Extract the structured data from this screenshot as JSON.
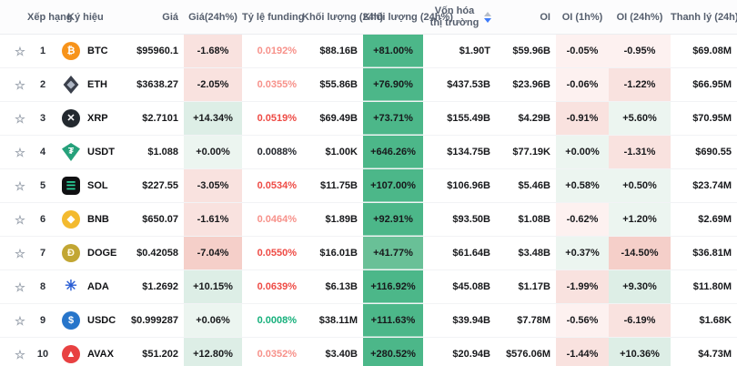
{
  "header": {
    "columns": [
      "Xếp hạng",
      "Ký hiệu",
      "Giá",
      "Giá(24h%)",
      "Tỷ lệ funding",
      "Khối lượng (24h)",
      "Khối lượng (24h%)",
      "Vốn hóa thị trường",
      "OI",
      "OI (1h%)",
      "OI (24h%)",
      "Thanh lý (24h)"
    ],
    "sort_column": "Vốn hóa thị trường",
    "sort_direction": "desc"
  },
  "colors": {
    "strong_green": "#4cb789",
    "light_green_tint": "#ddeee6",
    "pink_tint": "#f9e2df",
    "funding_red": "#ee4b45",
    "funding_green": "#17b07c",
    "sort_active_blue": "#3e7bfa"
  },
  "rows": [
    {
      "rank": "1",
      "symbol": "BTC",
      "icon": {
        "name": "btc-icon",
        "shape": "circle",
        "bg": "#f7931a",
        "fg": "#ffffff",
        "glyph": "₿"
      },
      "price": "$95960.1",
      "change24h": "-1.68%",
      "change24h_tint": "pink2",
      "funding": "0.0192%",
      "funding_color": "light-red",
      "vol24h": "$88.16B",
      "vol24h_pct": "+81.00%",
      "vol_tint": "gstrong",
      "mcap": "$1.90T",
      "oi": "$59.96B",
      "oi1h": "-0.05%",
      "oi1h_tint": "pink1",
      "oi24h": "-0.95%",
      "oi24h_tint": "pink1",
      "liq": "$69.08M"
    },
    {
      "rank": "2",
      "symbol": "ETH",
      "icon": {
        "name": "eth-icon",
        "shape": "diamond",
        "bg": "#3a3f4b",
        "fg": "#aeb6c4",
        "glyph": "◆"
      },
      "price": "$3638.27",
      "change24h": "-2.05%",
      "change24h_tint": "pink2",
      "funding": "0.0355%",
      "funding_color": "light-red",
      "vol24h": "$55.86B",
      "vol24h_pct": "+76.90%",
      "vol_tint": "gstrong",
      "mcap": "$437.53B",
      "oi": "$23.96B",
      "oi1h": "-0.06%",
      "oi1h_tint": "pink1",
      "oi24h": "-1.22%",
      "oi24h_tint": "pink2",
      "liq": "$66.95M"
    },
    {
      "rank": "3",
      "symbol": "XRP",
      "icon": {
        "name": "xrp-icon",
        "shape": "circle",
        "bg": "#23292f",
        "fg": "#ffffff",
        "glyph": "✕"
      },
      "price": "$2.7101",
      "change24h": "+14.34%",
      "change24h_tint": "green2",
      "funding": "0.0519%",
      "funding_color": "red",
      "vol24h": "$69.49B",
      "vol24h_pct": "+73.71%",
      "vol_tint": "gstrong",
      "mcap": "$155.49B",
      "oi": "$4.29B",
      "oi1h": "-0.91%",
      "oi1h_tint": "pink2",
      "oi24h": "+5.60%",
      "oi24h_tint": "green1",
      "liq": "$70.95M"
    },
    {
      "rank": "4",
      "symbol": "USDT",
      "icon": {
        "name": "usdt-icon",
        "shape": "shield",
        "bg": "#26a17b",
        "fg": "#ffffff",
        "glyph": "₮"
      },
      "price": "$1.088",
      "change24h": "+0.00%",
      "change24h_tint": "green1",
      "funding": "0.0088%",
      "funding_color": "dark",
      "vol24h": "$1.00K",
      "vol24h_pct": "+646.26%",
      "vol_tint": "gstrong",
      "mcap": "$134.75B",
      "oi": "$77.19K",
      "oi1h": "+0.00%",
      "oi1h_tint": "green1",
      "oi24h": "-1.31%",
      "oi24h_tint": "pink2",
      "liq": "$690.55"
    },
    {
      "rank": "5",
      "symbol": "SOL",
      "icon": {
        "name": "sol-icon",
        "shape": "square",
        "bg": "#101012",
        "fg": "#2bd9a0",
        "glyph": "☰"
      },
      "price": "$227.55",
      "change24h": "-3.05%",
      "change24h_tint": "pink2",
      "funding": "0.0534%",
      "funding_color": "red",
      "vol24h": "$11.75B",
      "vol24h_pct": "+107.00%",
      "vol_tint": "gstrong",
      "mcap": "$106.96B",
      "oi": "$5.46B",
      "oi1h": "+0.58%",
      "oi1h_tint": "green1",
      "oi24h": "+0.50%",
      "oi24h_tint": "green1",
      "liq": "$23.74M"
    },
    {
      "rank": "6",
      "symbol": "BNB",
      "icon": {
        "name": "bnb-icon",
        "shape": "circle",
        "bg": "#f3ba2f",
        "fg": "#ffffff",
        "glyph": "◆"
      },
      "price": "$650.07",
      "change24h": "-1.61%",
      "change24h_tint": "pink2",
      "funding": "0.0464%",
      "funding_color": "light-red",
      "vol24h": "$1.89B",
      "vol24h_pct": "+92.91%",
      "vol_tint": "gstrong",
      "mcap": "$93.50B",
      "oi": "$1.08B",
      "oi1h": "-0.62%",
      "oi1h_tint": "pink1",
      "oi24h": "+1.20%",
      "oi24h_tint": "green1",
      "liq": "$2.69M"
    },
    {
      "rank": "7",
      "symbol": "DOGE",
      "icon": {
        "name": "doge-icon",
        "shape": "circle",
        "bg": "#c2a633",
        "fg": "#fff8e0",
        "glyph": "Ð"
      },
      "price": "$0.42058",
      "change24h": "-7.04%",
      "change24h_tint": "pink3",
      "funding": "0.0550%",
      "funding_color": "red",
      "vol24h": "$16.01B",
      "vol24h_pct": "+41.77%",
      "vol_tint": "gmed",
      "mcap": "$61.64B",
      "oi": "$3.48B",
      "oi1h": "+0.37%",
      "oi1h_tint": "green1",
      "oi24h": "-14.50%",
      "oi24h_tint": "pink3",
      "liq": "$36.81M"
    },
    {
      "rank": "8",
      "symbol": "ADA",
      "icon": {
        "name": "ada-icon",
        "shape": "none",
        "bg": "transparent",
        "fg": "#2a5ed4",
        "glyph": "✳"
      },
      "price": "$1.2692",
      "change24h": "+10.15%",
      "change24h_tint": "green2",
      "funding": "0.0639%",
      "funding_color": "red",
      "vol24h": "$6.13B",
      "vol24h_pct": "+116.92%",
      "vol_tint": "gstrong",
      "mcap": "$45.08B",
      "oi": "$1.17B",
      "oi1h": "-1.99%",
      "oi1h_tint": "pink2",
      "oi24h": "+9.30%",
      "oi24h_tint": "green2",
      "liq": "$11.80M"
    },
    {
      "rank": "9",
      "symbol": "USDC",
      "icon": {
        "name": "usdc-icon",
        "shape": "circle",
        "bg": "#2775ca",
        "fg": "#ffffff",
        "glyph": "$"
      },
      "price": "$0.999287",
      "change24h": "+0.06%",
      "change24h_tint": "green1",
      "funding": "0.0008%",
      "funding_color": "green",
      "vol24h": "$38.11M",
      "vol24h_pct": "+111.63%",
      "vol_tint": "gstrong",
      "mcap": "$39.94B",
      "oi": "$7.78M",
      "oi1h": "-0.56%",
      "oi1h_tint": "pink1",
      "oi24h": "-6.19%",
      "oi24h_tint": "pink2",
      "liq": "$1.68K"
    },
    {
      "rank": "10",
      "symbol": "AVAX",
      "icon": {
        "name": "avax-icon",
        "shape": "circle",
        "bg": "#e84142",
        "fg": "#ffffff",
        "glyph": "▲"
      },
      "price": "$51.202",
      "change24h": "+12.80%",
      "change24h_tint": "green2",
      "funding": "0.0352%",
      "funding_color": "light-red",
      "vol24h": "$3.40B",
      "vol24h_pct": "+280.52%",
      "vol_tint": "gstrong",
      "mcap": "$20.94B",
      "oi": "$576.06M",
      "oi1h": "-1.44%",
      "oi1h_tint": "pink2",
      "oi24h": "+10.36%",
      "oi24h_tint": "green2",
      "liq": "$4.73M"
    }
  ]
}
